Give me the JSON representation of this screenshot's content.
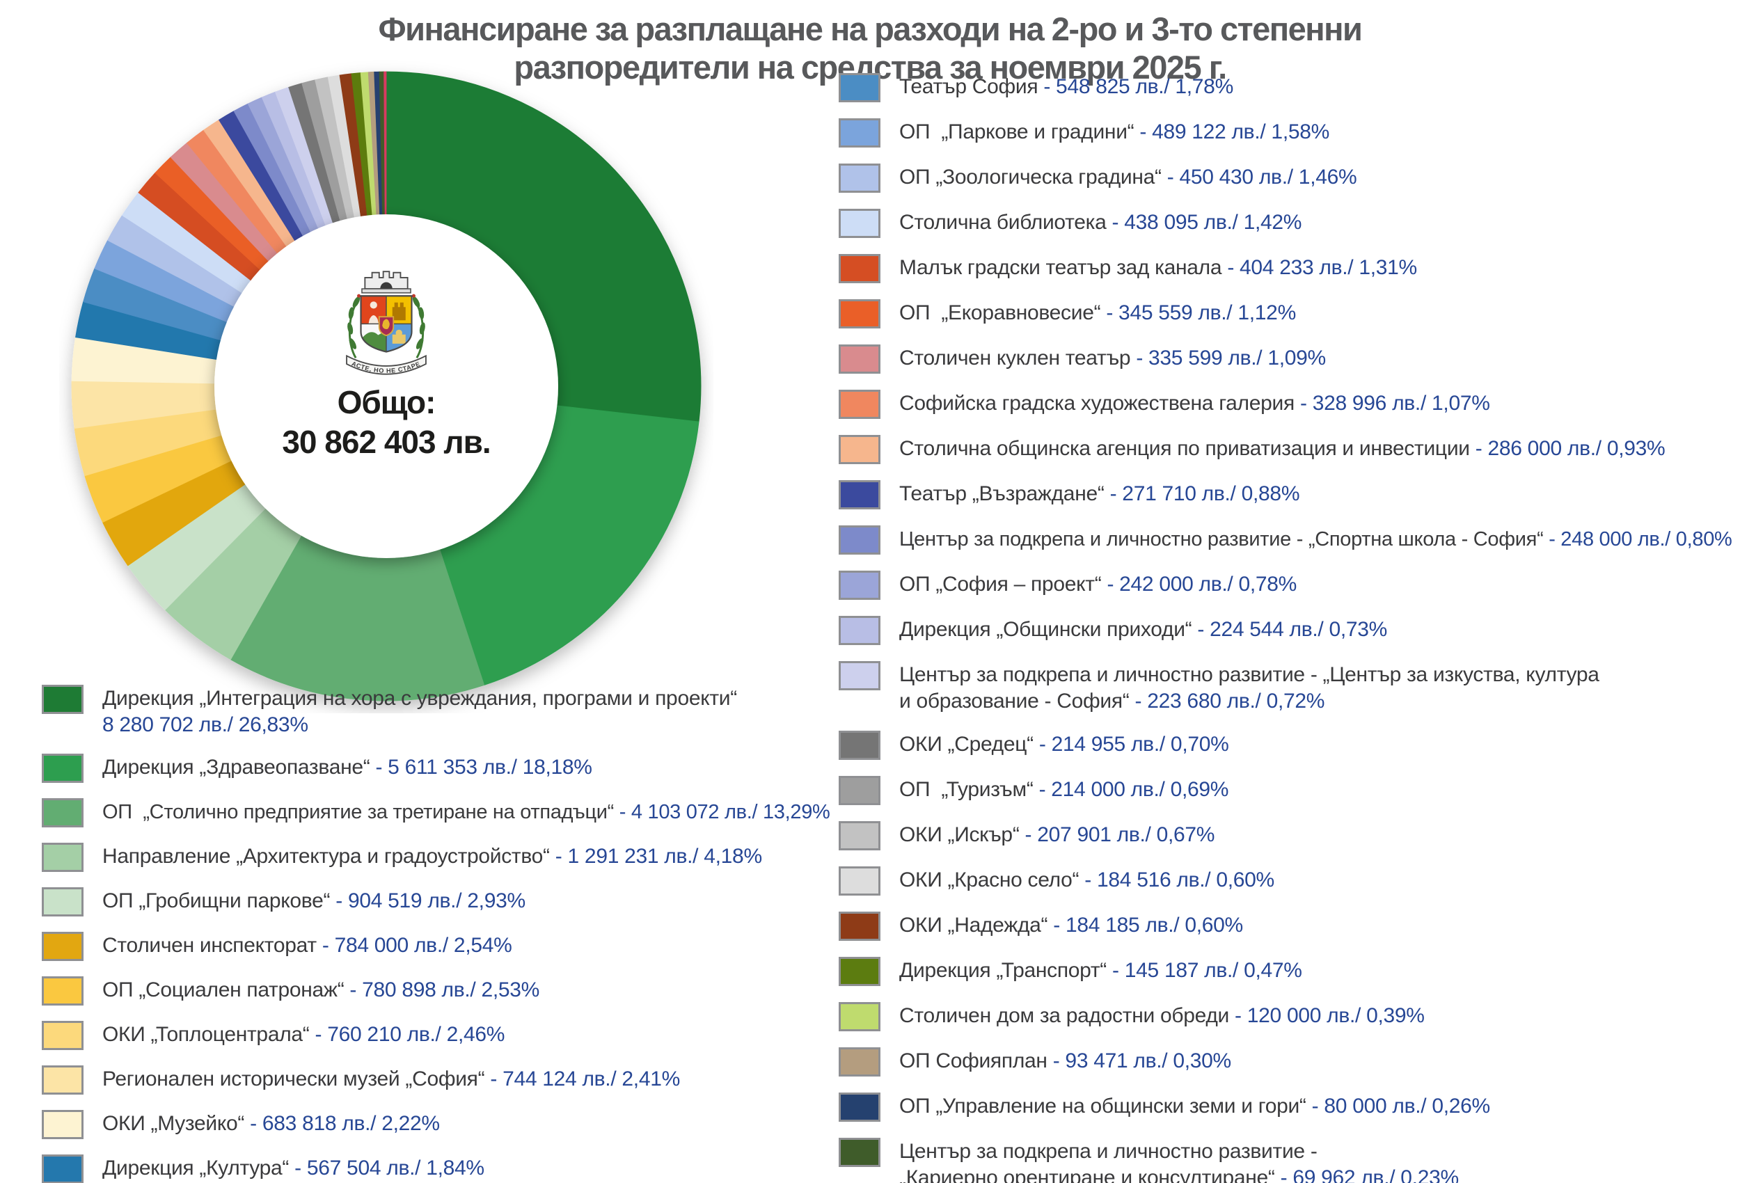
{
  "title": {
    "line1": "Финансиране за разплащане на разходи на 2-ро и 3-то степенни",
    "line2": "разпоредители на средства за ноември 2025 г."
  },
  "donut": {
    "center_label": "Общо:",
    "center_value": "30 862 403 лв.",
    "emblem_motto": "РАСТЕ, НО НЕ СТАРЕЕ"
  },
  "chart_data": {
    "type": "pie",
    "variant": "donut",
    "title": "Финансиране за разплащане на разходи на 2-ро и 3-то степенни разпоредители на средства за ноември 2025 г.",
    "total_label": "Общо:",
    "total_value": "30 862 403 лв.",
    "start_angle": "12 o'clock",
    "direction": "clockwise",
    "legend_split": {
      "left_count": 11,
      "right_count": 24
    },
    "slices": [
      {
        "label": "Дирекция „Интеграция на хора с увреждания, програми и проекти“",
        "value_text": "8 280 702 лв./ 26,83%",
        "percent": 26.83,
        "color": "#1e7b34",
        "sep": "newline"
      },
      {
        "label": "Дирекция „Здравеопазване“",
        "value_text": "5 611 353 лв./ 18,18%",
        "percent": 18.18,
        "color": "#2d9e4f",
        "sep": "dash"
      },
      {
        "label": "ОП  „Столично предприятие за третиране на отпадъци“",
        "value_text": "4 103 072 лв./ 13,29%",
        "percent": 13.29,
        "color": "#62ad72",
        "sep": "dash"
      },
      {
        "label": "Направление „Архитектура и градоустройство“",
        "value_text": "1 291 231 лв./ 4,18%",
        "percent": 4.18,
        "color": "#a4cfa6",
        "sep": "dash"
      },
      {
        "label": "ОП „Гробищни паркове“",
        "value_text": "904 519 лв./ 2,93%",
        "percent": 2.93,
        "color": "#c9e2c9",
        "sep": "dash"
      },
      {
        "label": "Столичен инспекторат",
        "value_text": "784 000 лв./ 2,54%",
        "percent": 2.54,
        "color": "#e2a711",
        "sep": "dash"
      },
      {
        "label": "ОП „Социален патронаж“",
        "value_text": "780 898 лв./ 2,53%",
        "percent": 2.53,
        "color": "#fac840",
        "sep": "dash"
      },
      {
        "label": "ОКИ „Топлоцентрала“",
        "value_text": "760 210 лв./ 2,46%",
        "percent": 2.46,
        "color": "#fcd97c",
        "sep": "dash"
      },
      {
        "label": "Регионален исторически музей „София“",
        "value_text": "744 124 лв./ 2,41%",
        "percent": 2.41,
        "color": "#fce4a6",
        "sep": "dash"
      },
      {
        "label": "ОКИ „Музейко“",
        "value_text": "683 818 лв./ 2,22%",
        "percent": 2.22,
        "color": "#fdf3d2",
        "sep": "dash"
      },
      {
        "label": "Дирекция „Култура“",
        "value_text": "567 504 лв./ 1,84%",
        "percent": 1.84,
        "color": "#2478ad",
        "sep": "dash"
      },
      {
        "label": "Театър София",
        "value_text": "548 825 лв./ 1,78%",
        "percent": 1.78,
        "color": "#4b8dc4",
        "sep": "dash"
      },
      {
        "label": "ОП  „Паркове и градини“",
        "value_text": "489 122 лв./ 1,58%",
        "percent": 1.58,
        "color": "#7ba4dc",
        "sep": "dash"
      },
      {
        "label": "ОП „Зоологическа градина“",
        "value_text": "450 430 лв./ 1,46%",
        "percent": 1.46,
        "color": "#b0c2e9",
        "sep": "dash"
      },
      {
        "label": "Столична библиотека",
        "value_text": "438 095 лв./ 1,42%",
        "percent": 1.42,
        "color": "#cdddf6",
        "sep": "dash"
      },
      {
        "label": "Малък градски театър зад канала",
        "value_text": "404 233 лв./ 1,31%",
        "percent": 1.31,
        "color": "#d54e23",
        "sep": "dash"
      },
      {
        "label": "ОП  „Екоравновесие“",
        "value_text": "345 559 лв./ 1,12%",
        "percent": 1.12,
        "color": "#ea5f28",
        "sep": "dash"
      },
      {
        "label": "Столичен куклен театър",
        "value_text": "335 599 лв./ 1,09%",
        "percent": 1.09,
        "color": "#d98b8e",
        "sep": "dash"
      },
      {
        "label": "Софийска градска художествена галерия",
        "value_text": "328 996 лв./ 1,07%",
        "percent": 1.07,
        "color": "#f0875f",
        "sep": "dash"
      },
      {
        "label": "Столична общинска агенция по приватизация и инвестиции",
        "value_text": "286 000 лв./ 0,93%",
        "percent": 0.93,
        "color": "#f6b68d",
        "sep": "dash"
      },
      {
        "label": "Театър „Възраждане“",
        "value_text": "271 710 лв./ 0,88%",
        "percent": 0.88,
        "color": "#3b4a9e",
        "sep": "dash"
      },
      {
        "label": "Център за подкрепа и личностно развитие - „Спортна школа - София“",
        "value_text": "248 000 лв./ 0,80%",
        "percent": 0.8,
        "color": "#7d8aca",
        "sep": "dash"
      },
      {
        "label": "ОП „София – проект“",
        "value_text": "242 000 лв./ 0,78%",
        "percent": 0.78,
        "color": "#9ba5d8",
        "sep": "dash"
      },
      {
        "label": "Дирекция „Общински приходи“",
        "value_text": "224 544 лв./ 0,73%",
        "percent": 0.73,
        "color": "#b8bee5",
        "sep": "dash"
      },
      {
        "label": "Център за подкрепа и личностно развитие - „Център за изкуства, култура\nи образование - София“",
        "value_text": "223 680 лв./ 0,72%",
        "percent": 0.72,
        "color": "#cdd0ed",
        "sep": "dash"
      },
      {
        "label": "ОКИ „Средец“",
        "value_text": "214 955 лв./ 0,70%",
        "percent": 0.7,
        "color": "#757575",
        "sep": "dash"
      },
      {
        "label": "ОП  „Туризъм“",
        "value_text": "214 000 лв./ 0,69%",
        "percent": 0.69,
        "color": "#9e9e9e",
        "sep": "dash"
      },
      {
        "label": "ОКИ „Искър“",
        "value_text": "207 901 лв./ 0,67%",
        "percent": 0.67,
        "color": "#c2c2c2",
        "sep": "dash"
      },
      {
        "label": "ОКИ „Красно село“",
        "value_text": "184 516 лв./ 0,60%",
        "percent": 0.6,
        "color": "#dddddd",
        "sep": "dash"
      },
      {
        "label": "ОКИ „Надежда“",
        "value_text": "184 185 лв./ 0,60%",
        "percent": 0.6,
        "color": "#8e3b17",
        "sep": "dash"
      },
      {
        "label": "Дирекция „Транспорт“",
        "value_text": "145 187 лв./ 0,47%",
        "percent": 0.47,
        "color": "#5c7c10",
        "sep": "dash"
      },
      {
        "label": "Столичен дом за радостни обреди",
        "value_text": "120 000 лв./ 0,39%",
        "percent": 0.39,
        "color": "#bfdb6e",
        "sep": "dash"
      },
      {
        "label": "ОП Софияплан",
        "value_text": "93 471 лв./ 0,30%",
        "percent": 0.3,
        "color": "#b49d7f",
        "sep": "dash"
      },
      {
        "label": "ОП „Управление на общински земи и гори“",
        "value_text": "80 000 лв./ 0,26%",
        "percent": 0.26,
        "color": "#25416f",
        "sep": "dash"
      },
      {
        "label": "Център за подкрепа и личностно развитие -\n„Кариерно орентиране и консултиране“",
        "value_text": "69 962 лв./ 0,23%",
        "percent": 0.23,
        "color": "#3f5c2a",
        "sep": "dash"
      }
    ],
    "unlabeled_sliver": {
      "percent": 0.12,
      "color": "#d93a60"
    }
  }
}
